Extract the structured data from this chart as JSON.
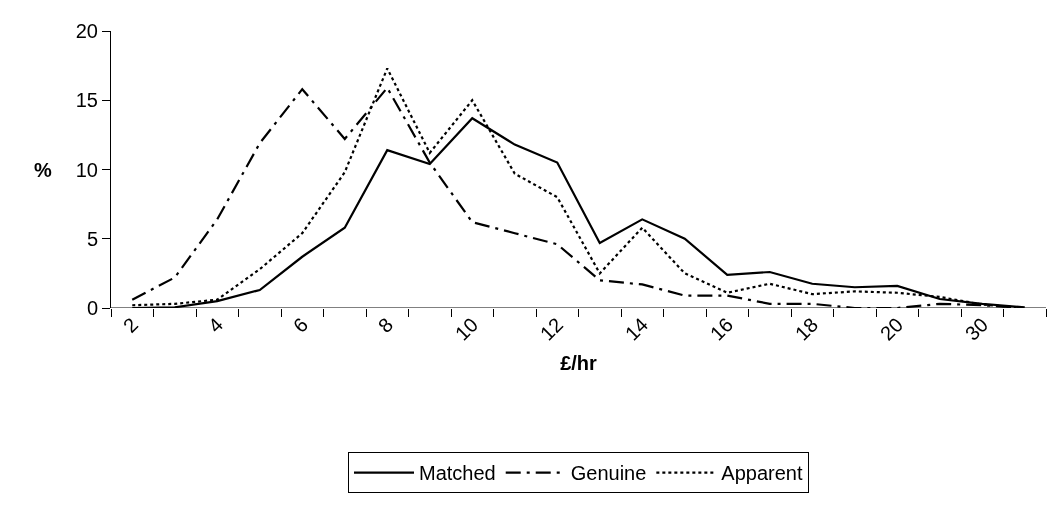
{
  "chart_data": {
    "type": "line",
    "xlabel": "£/hr",
    "ylabel": "%",
    "categories": [
      "2",
      null,
      "4",
      null,
      "6",
      null,
      "8",
      null,
      "10",
      null,
      "12",
      null,
      "14",
      null,
      "16",
      null,
      "18",
      null,
      "20",
      null,
      "30",
      null
    ],
    "series": [
      {
        "name": "Matched",
        "color": "#000000",
        "line_style": "solid",
        "values": [
          0,
          0.05,
          0.5,
          1.3,
          3.7,
          5.8,
          11.4,
          10.4,
          13.7,
          11.8,
          10.5,
          4.7,
          6.4,
          5.0,
          2.4,
          2.6,
          1.75,
          1.5,
          1.6,
          0.65,
          0.3,
          0.05
        ]
      },
      {
        "name": "Genuine",
        "color": "#000000",
        "line_style": "dashed",
        "values": [
          0.6,
          2.2,
          6.4,
          11.9,
          15.8,
          12.2,
          15.9,
          10.5,
          6.2,
          5.4,
          4.6,
          2.0,
          1.7,
          0.9,
          0.9,
          0.3,
          0.3,
          0,
          0,
          0.3,
          0.2,
          0
        ]
      },
      {
        "name": "Apparent",
        "color": "#000000",
        "line_style": "dotted",
        "values": [
          0.2,
          0.3,
          0.6,
          2.8,
          5.4,
          9.8,
          17.3,
          11.2,
          15.0,
          9.7,
          8.0,
          2.5,
          5.8,
          2.5,
          1.1,
          1.75,
          1.0,
          1.2,
          1.1,
          0.8,
          0.25,
          0
        ]
      }
    ],
    "ylim": [
      0,
      20
    ],
    "yticks": [
      0,
      5,
      10,
      15,
      20
    ],
    "grid": false,
    "legend": "bottom",
    "marker": "none"
  }
}
